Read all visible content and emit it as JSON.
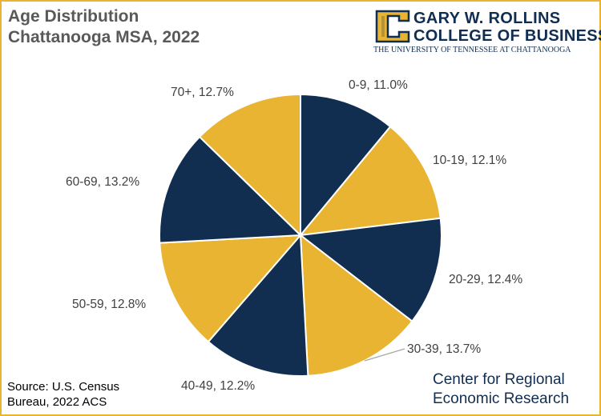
{
  "title": {
    "line1": "Age Distribution",
    "line2": "Chattanooga MSA, 2022"
  },
  "logo": {
    "line1": "GARY W. ROLLINS",
    "line2": "COLLEGE OF BUSINESS",
    "line3": "THE UNIVERSITY OF TENNESSEE AT CHATTANOOGA"
  },
  "source": {
    "line1": "Source: U.S. Census",
    "line2": "Bureau, 2022 ACS"
  },
  "center": {
    "line1": "Center for Regional",
    "line2": "Economic Research"
  },
  "colors": {
    "navy": "#112E51",
    "gold": "#E8B431",
    "label": "#404040",
    "leader": "#A6A6A6"
  },
  "chart_data": {
    "type": "pie",
    "title": "Age Distribution Chattanooga MSA, 2022",
    "categories": [
      "0-9",
      "10-19",
      "20-29",
      "30-39",
      "40-49",
      "50-59",
      "60-69",
      "70+"
    ],
    "values": [
      11.0,
      12.1,
      12.4,
      13.7,
      12.2,
      12.8,
      13.2,
      12.7
    ],
    "labels": [
      "0-9, 11.0%",
      "10-19, 12.1%",
      "20-29, 12.4%",
      "30-39, 13.7%",
      "40-49, 12.2%",
      "50-59, 12.8%",
      "60-69, 13.2%",
      "70+, 12.7%"
    ],
    "slice_colors": [
      "#112E51",
      "#E8B431",
      "#112E51",
      "#E8B431",
      "#112E51",
      "#E8B431",
      "#112E51",
      "#E8B431"
    ],
    "legend": "none"
  }
}
